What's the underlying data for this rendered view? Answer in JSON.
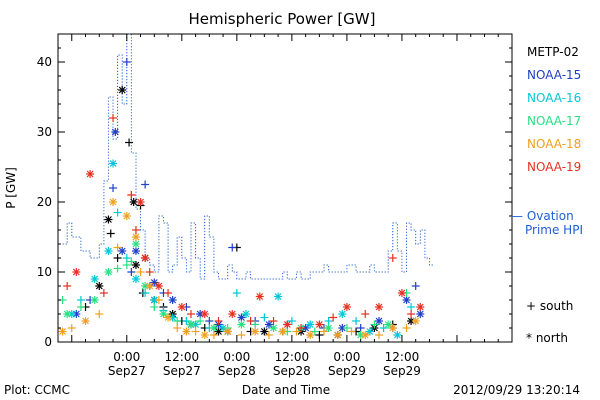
{
  "chart_data": {
    "type": "scatter",
    "title": "Hemispheric Power [GW]",
    "ylabel": "P [GW]",
    "xlabel": "Date and Time",
    "ylim": [
      0,
      44
    ],
    "x_hours_range": [
      -15,
      84
    ],
    "yticks": [
      0,
      10,
      20,
      30,
      40
    ],
    "xticks": [
      {
        "hour": 0,
        "time": "0:00",
        "date": "Sep27"
      },
      {
        "hour": 12,
        "time": "12:00",
        "date": "Sep27"
      },
      {
        "hour": 24,
        "time": "0:00",
        "date": "Sep28"
      },
      {
        "hour": 36,
        "time": "12:00",
        "date": "Sep28"
      },
      {
        "hour": 48,
        "time": "0:00",
        "date": "Sep29"
      },
      {
        "hour": 60,
        "time": "12:00",
        "date": "Sep29"
      }
    ],
    "grid": false,
    "legend_position": "right",
    "series": [
      {
        "name": "METP-02",
        "color": "#000000",
        "points": [
          [
            -4,
            17.5
          ],
          [
            -3.5,
            15.5
          ],
          [
            -1,
            36
          ],
          [
            0.5,
            28.5
          ],
          [
            1.5,
            20
          ],
          [
            3,
            19.5
          ],
          [
            2,
            11
          ],
          [
            3.5,
            7
          ],
          [
            4,
            12
          ],
          [
            5,
            8
          ],
          [
            6,
            6
          ],
          [
            8,
            5
          ],
          [
            10,
            4
          ],
          [
            12,
            3
          ],
          [
            14,
            2.5
          ],
          [
            17,
            2
          ],
          [
            20,
            1.5
          ],
          [
            24,
            13.5
          ],
          [
            22,
            1.5
          ],
          [
            27,
            1.5
          ],
          [
            30,
            1.5
          ],
          [
            34,
            1.5
          ],
          [
            38,
            1.5
          ],
          [
            42,
            1
          ],
          [
            46,
            1
          ],
          [
            50,
            1.5
          ],
          [
            54,
            2
          ],
          [
            58,
            2.5
          ],
          [
            62,
            3
          ],
          [
            -2,
            12
          ],
          [
            -6,
            8
          ],
          [
            -9,
            5
          ]
        ]
      },
      {
        "name": "NOAA-15",
        "color": "#1f3fc8",
        "points": [
          [
            -3,
            22
          ],
          [
            -2.5,
            30
          ],
          [
            0,
            40
          ],
          [
            -1,
            13
          ],
          [
            4,
            22.5
          ],
          [
            2,
            13
          ],
          [
            1,
            10
          ],
          [
            6,
            8.5
          ],
          [
            8,
            7
          ],
          [
            10,
            6
          ],
          [
            13,
            5
          ],
          [
            16,
            4
          ],
          [
            18,
            3
          ],
          [
            20,
            2.5
          ],
          [
            23,
            13.5
          ],
          [
            25,
            3.5
          ],
          [
            28,
            3
          ],
          [
            31,
            2.5
          ],
          [
            35,
            2.5
          ],
          [
            39,
            2
          ],
          [
            43,
            2
          ],
          [
            47,
            2
          ],
          [
            51,
            2
          ],
          [
            55,
            3
          ],
          [
            58,
            2
          ],
          [
            61,
            6
          ],
          [
            63,
            8
          ],
          [
            64,
            4
          ],
          [
            -8,
            6
          ],
          [
            -11,
            4
          ]
        ]
      },
      {
        "name": "NOAA-16",
        "color": "#00c8d8",
        "points": [
          [
            -3,
            25.5
          ],
          [
            -2,
            18.5
          ],
          [
            -4,
            13
          ],
          [
            0,
            12
          ],
          [
            2,
            9
          ],
          [
            4,
            7
          ],
          [
            6,
            6
          ],
          [
            8,
            4.5
          ],
          [
            10,
            3.5
          ],
          [
            13,
            3
          ],
          [
            15,
            2.5
          ],
          [
            18,
            2
          ],
          [
            21,
            2
          ],
          [
            24,
            7
          ],
          [
            26,
            4
          ],
          [
            30,
            3.5
          ],
          [
            33,
            6.5
          ],
          [
            36,
            3
          ],
          [
            40,
            2.5
          ],
          [
            44,
            3
          ],
          [
            47,
            4
          ],
          [
            50,
            3
          ],
          [
            53,
            1.5
          ],
          [
            56,
            2
          ],
          [
            59,
            1
          ],
          [
            62,
            5
          ],
          [
            -7,
            9
          ],
          [
            -10,
            6
          ],
          [
            -12,
            4
          ]
        ]
      },
      {
        "name": "NOAA-17",
        "color": "#28e080",
        "points": [
          [
            -2,
            10.5
          ],
          [
            -4,
            10
          ],
          [
            0,
            11
          ],
          [
            2,
            14
          ],
          [
            1,
            11.5
          ],
          [
            4,
            8
          ],
          [
            6,
            5
          ],
          [
            8,
            4
          ],
          [
            11,
            3
          ],
          [
            14,
            2.5
          ],
          [
            16,
            3
          ],
          [
            19,
            2
          ],
          [
            22,
            2
          ],
          [
            25,
            2.5
          ],
          [
            28,
            2.5
          ],
          [
            32,
            2
          ],
          [
            35,
            1.5
          ],
          [
            38,
            2
          ],
          [
            41,
            1.5
          ],
          [
            44,
            2
          ],
          [
            48,
            2
          ],
          [
            51,
            1
          ],
          [
            54,
            2.5
          ],
          [
            57,
            2.5
          ],
          [
            61,
            7
          ],
          [
            -7,
            6
          ],
          [
            -10,
            5
          ],
          [
            -13,
            4
          ],
          [
            -14,
            6
          ]
        ]
      },
      {
        "name": "NOAA-18",
        "color": "#f0a020",
        "points": [
          [
            -3,
            20
          ],
          [
            -2,
            13.5
          ],
          [
            0,
            18
          ],
          [
            1,
            21
          ],
          [
            2,
            15
          ],
          [
            3,
            10
          ],
          [
            5,
            8
          ],
          [
            7,
            6
          ],
          [
            9,
            3.5
          ],
          [
            11,
            2
          ],
          [
            13,
            1.5
          ],
          [
            15,
            1.5
          ],
          [
            17,
            1
          ],
          [
            19,
            1
          ],
          [
            22,
            1.5
          ],
          [
            25,
            1
          ],
          [
            28,
            1.5
          ],
          [
            31,
            1
          ],
          [
            34,
            1.5
          ],
          [
            37,
            1.5
          ],
          [
            40,
            1
          ],
          [
            43,
            1.5
          ],
          [
            46,
            1
          ],
          [
            49,
            1.5
          ],
          [
            52,
            1
          ],
          [
            55,
            1
          ],
          [
            58,
            2
          ],
          [
            61,
            2
          ],
          [
            63,
            3
          ],
          [
            -6,
            4
          ],
          [
            -9,
            3
          ],
          [
            -12,
            2
          ],
          [
            -14,
            1.5
          ]
        ]
      },
      {
        "name": "NOAA-19",
        "color": "#e83020",
        "points": [
          [
            -3,
            32
          ],
          [
            -8,
            24
          ],
          [
            1,
            21
          ],
          [
            3,
            20
          ],
          [
            2,
            16
          ],
          [
            4,
            12
          ],
          [
            5,
            10
          ],
          [
            7,
            8
          ],
          [
            9,
            7
          ],
          [
            12,
            5
          ],
          [
            14,
            4
          ],
          [
            17,
            4
          ],
          [
            20,
            3
          ],
          [
            23,
            4
          ],
          [
            27,
            3
          ],
          [
            29,
            6.5
          ],
          [
            32,
            3
          ],
          [
            35,
            2.5
          ],
          [
            38,
            2
          ],
          [
            42,
            2.5
          ],
          [
            45,
            3.5
          ],
          [
            48,
            5
          ],
          [
            52,
            4
          ],
          [
            55,
            5
          ],
          [
            58,
            12
          ],
          [
            60,
            7
          ],
          [
            62,
            4
          ],
          [
            64,
            5
          ],
          [
            -5,
            7
          ],
          [
            -11,
            10
          ],
          [
            -13,
            8
          ]
        ]
      }
    ],
    "ovation": {
      "name": "Ovation Prime HPI",
      "label": "— Ovation",
      "label2": "Prime HPI",
      "color": "#1e5fd0",
      "x": [
        -14,
        -13,
        -12,
        -10,
        -8,
        -6,
        -5,
        -4,
        -3,
        -2,
        -1,
        0,
        1,
        2,
        3,
        4,
        5,
        6,
        7,
        8,
        9,
        10,
        11,
        12,
        13,
        14,
        15,
        16,
        17,
        18,
        19,
        20,
        21,
        22,
        23,
        24,
        25,
        26,
        27,
        28,
        29,
        30,
        31,
        32,
        33,
        34,
        35,
        36,
        37,
        38,
        39,
        40,
        41,
        42,
        43,
        44,
        45,
        46,
        47,
        48,
        49,
        50,
        51,
        52,
        53,
        54,
        55,
        56,
        57,
        58,
        59,
        60,
        61,
        62,
        63,
        64,
        65,
        66
      ],
      "values": [
        14,
        17,
        15,
        13,
        12,
        14,
        23,
        35,
        29,
        41,
        34,
        44,
        27,
        19,
        16,
        12,
        11,
        10,
        18,
        17,
        10,
        11,
        15,
        12,
        10,
        17,
        12,
        9,
        18,
        15,
        10,
        9,
        9,
        11,
        10,
        9,
        9,
        10,
        9,
        9,
        9,
        9,
        9,
        9,
        9,
        10,
        9,
        9,
        10,
        9,
        9,
        10,
        10,
        10,
        11,
        10,
        10,
        10,
        10,
        11,
        11,
        10,
        10,
        10,
        11,
        10,
        10,
        10,
        13,
        17,
        13,
        10,
        17,
        16,
        14,
        16,
        12,
        11
      ]
    },
    "markers": [
      {
        "symbol": "+",
        "label": "south"
      },
      {
        "symbol": "*",
        "label": "north"
      }
    ],
    "footer": {
      "plot": "Plot: CCMC",
      "timestamp": "2012/09/29 13:20:14"
    }
  }
}
